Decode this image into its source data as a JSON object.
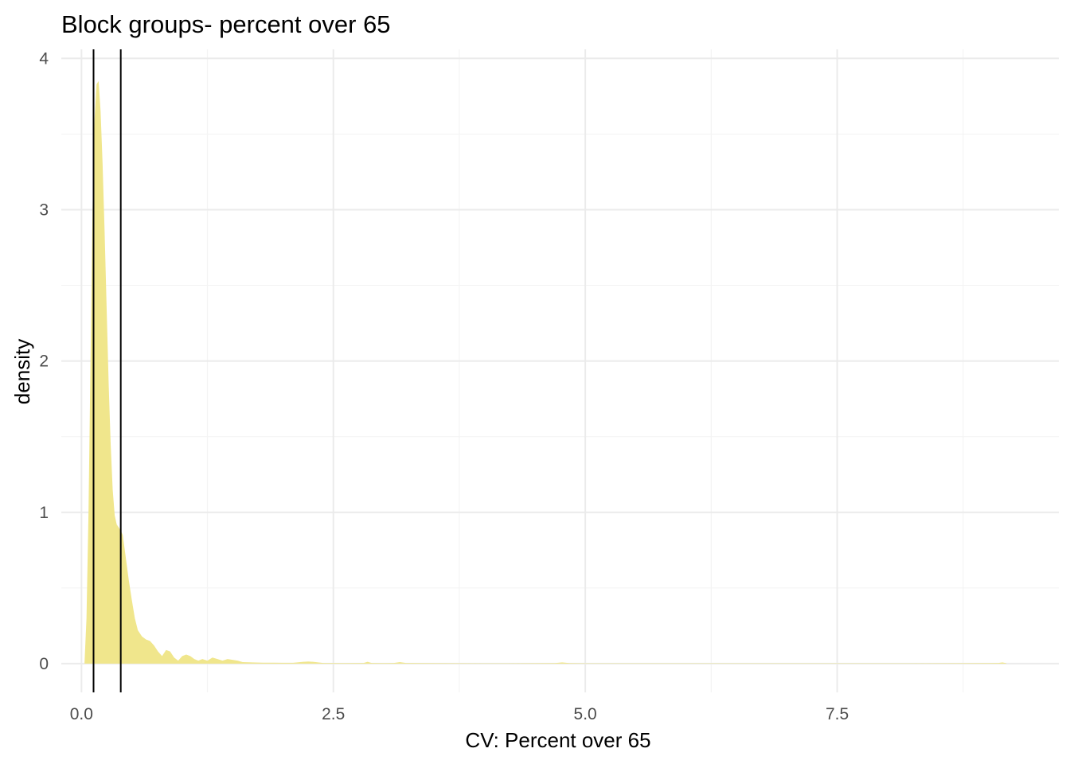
{
  "chart_data": {
    "type": "area",
    "subtype": "density",
    "title": "Block groups- percent over 65",
    "xlabel": "CV: Percent over 65",
    "ylabel": "density",
    "xlim": [
      -0.2,
      9.7
    ],
    "ylim": [
      -0.19,
      4.06
    ],
    "x_ticks": [
      0.0,
      2.5,
      5.0,
      7.5
    ],
    "x_tick_labels": [
      "0.0",
      "2.5",
      "5.0",
      "7.5"
    ],
    "x_minor": [
      1.25,
      3.75,
      6.25,
      8.75
    ],
    "y_ticks": [
      0,
      1,
      2,
      3,
      4
    ],
    "y_tick_labels": [
      "0",
      "1",
      "2",
      "3",
      "4"
    ],
    "y_minor": [
      0.5,
      1.5,
      2.5,
      3.5
    ],
    "grid": true,
    "legend": "none",
    "fill_color": "#F0E68C",
    "reference_lines": [
      {
        "x": 0.12,
        "color": "#000000"
      },
      {
        "x": 0.39,
        "color": "#000000"
      }
    ],
    "series": [
      {
        "x": [
          0.03,
          0.05,
          0.07,
          0.09,
          0.11,
          0.13,
          0.15,
          0.17,
          0.19,
          0.21,
          0.23,
          0.25,
          0.27,
          0.29,
          0.31,
          0.33,
          0.35,
          0.37,
          0.39,
          0.41,
          0.44,
          0.47,
          0.5,
          0.53,
          0.56,
          0.6,
          0.64,
          0.68,
          0.72,
          0.76,
          0.8,
          0.84,
          0.88,
          0.92,
          0.96,
          1.0,
          1.04,
          1.08,
          1.12,
          1.16,
          1.2,
          1.25,
          1.3,
          1.35,
          1.4,
          1.45,
          1.5,
          1.55,
          1.6,
          1.7,
          1.8,
          1.9,
          2.0,
          2.1,
          2.2,
          2.25,
          2.3,
          2.4,
          2.6,
          2.8,
          2.84,
          2.88,
          3.0,
          3.1,
          3.16,
          3.22,
          3.4,
          4.0,
          4.7,
          4.77,
          4.84,
          5.0,
          6.0,
          7.0,
          8.0,
          9.0,
          9.1,
          9.14,
          9.18
        ],
        "y": [
          0.0,
          0.3,
          1.0,
          2.0,
          3.0,
          3.6,
          3.83,
          3.85,
          3.65,
          3.3,
          2.85,
          2.35,
          1.85,
          1.45,
          1.15,
          0.98,
          0.92,
          0.9,
          0.88,
          0.85,
          0.7,
          0.55,
          0.42,
          0.3,
          0.22,
          0.18,
          0.16,
          0.15,
          0.12,
          0.08,
          0.05,
          0.09,
          0.08,
          0.04,
          0.02,
          0.05,
          0.06,
          0.05,
          0.03,
          0.02,
          0.03,
          0.02,
          0.04,
          0.03,
          0.02,
          0.03,
          0.025,
          0.02,
          0.01,
          0.008,
          0.006,
          0.006,
          0.005,
          0.005,
          0.012,
          0.014,
          0.012,
          0.004,
          0.003,
          0.004,
          0.012,
          0.004,
          0.003,
          0.004,
          0.01,
          0.004,
          0.003,
          0.002,
          0.003,
          0.008,
          0.003,
          0.002,
          0.002,
          0.002,
          0.002,
          0.003,
          0.004,
          0.008,
          0.002
        ]
      }
    ]
  }
}
